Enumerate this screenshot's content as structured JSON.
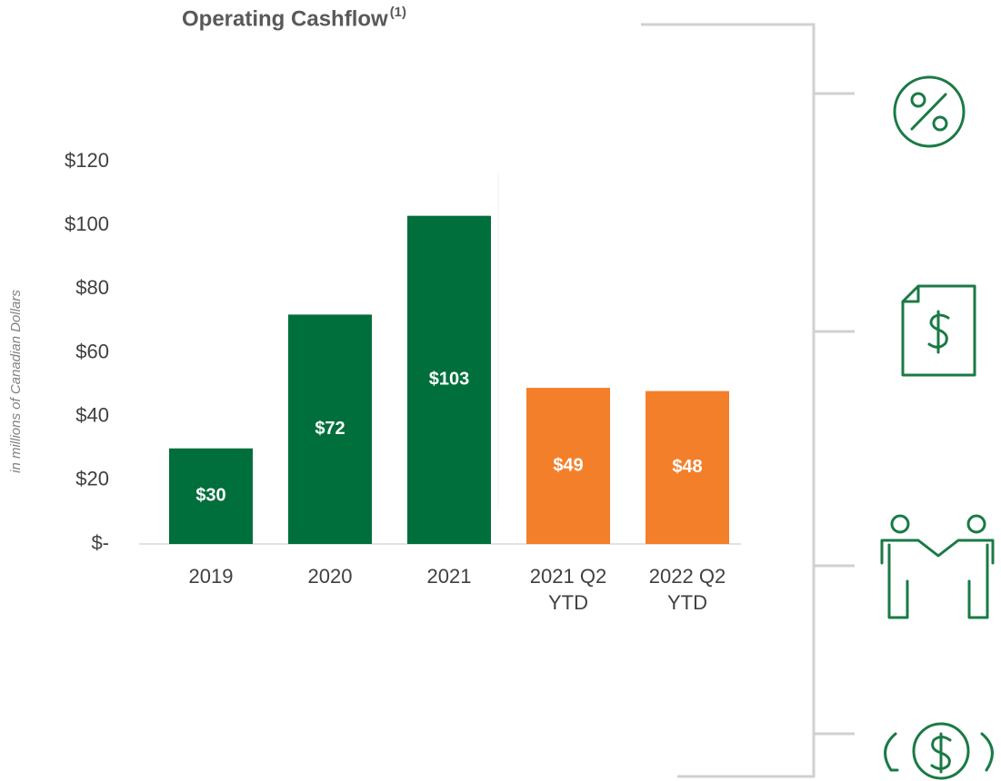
{
  "chart_data": {
    "type": "bar",
    "title": "Operating Cashflow",
    "title_note": "(1)",
    "y_label": "in millions of Canadian Dollars",
    "categories": [
      "2019",
      "2020",
      "2021",
      "2021 Q2 YTD",
      "2022 Q2 YTD"
    ],
    "values": [
      30,
      72,
      103,
      49,
      48
    ],
    "value_labels": [
      "$30",
      "$72",
      "$103",
      "$49",
      "$48"
    ],
    "colors": [
      "#006f3c",
      "#006f3c",
      "#006f3c",
      "#f47f2a",
      "#f47f2a"
    ],
    "ylim": [
      0,
      120
    ],
    "yticks": [
      {
        "value": 0,
        "label": "$-"
      },
      {
        "value": 20,
        "label": "$20"
      },
      {
        "value": 40,
        "label": "$40"
      },
      {
        "value": 60,
        "label": "$60"
      },
      {
        "value": 80,
        "label": "$80"
      },
      {
        "value": 100,
        "label": "$100"
      },
      {
        "value": 120,
        "label": "$120"
      }
    ],
    "grid": false
  }
}
